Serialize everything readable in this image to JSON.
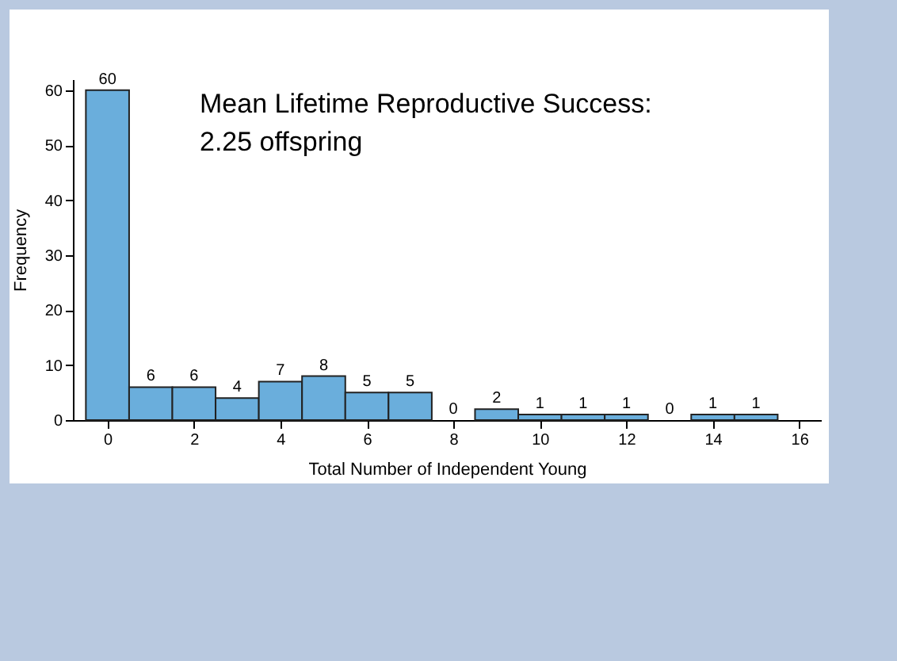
{
  "chart_data": {
    "type": "histogram",
    "xlabel": "Total Number of Independent Young",
    "ylabel": "Frequency",
    "annotations": [
      "Mean Lifetime Reproductive Success:\n2.25 offspring"
    ],
    "bins": [
      -0.5,
      0.5,
      1.5,
      2.5,
      3.5,
      4.5,
      5.5,
      6.5,
      7.5,
      8.5,
      9.5,
      10.5,
      11.5,
      12.5,
      13.5,
      14.5,
      15.5
    ],
    "values": [
      60,
      6,
      6,
      4,
      7,
      8,
      5,
      5,
      0,
      2,
      1,
      1,
      1,
      0,
      1,
      1
    ],
    "color": "#6aaedc",
    "data_labels": true,
    "grid": false,
    "xlim": [
      -0.8,
      16.5
    ],
    "xticks": [
      0,
      2,
      4,
      6,
      8,
      10,
      12,
      14,
      16
    ],
    "ylim": [
      0,
      62
    ],
    "yticks": [
      0,
      10,
      20,
      30,
      40,
      50,
      60
    ]
  }
}
